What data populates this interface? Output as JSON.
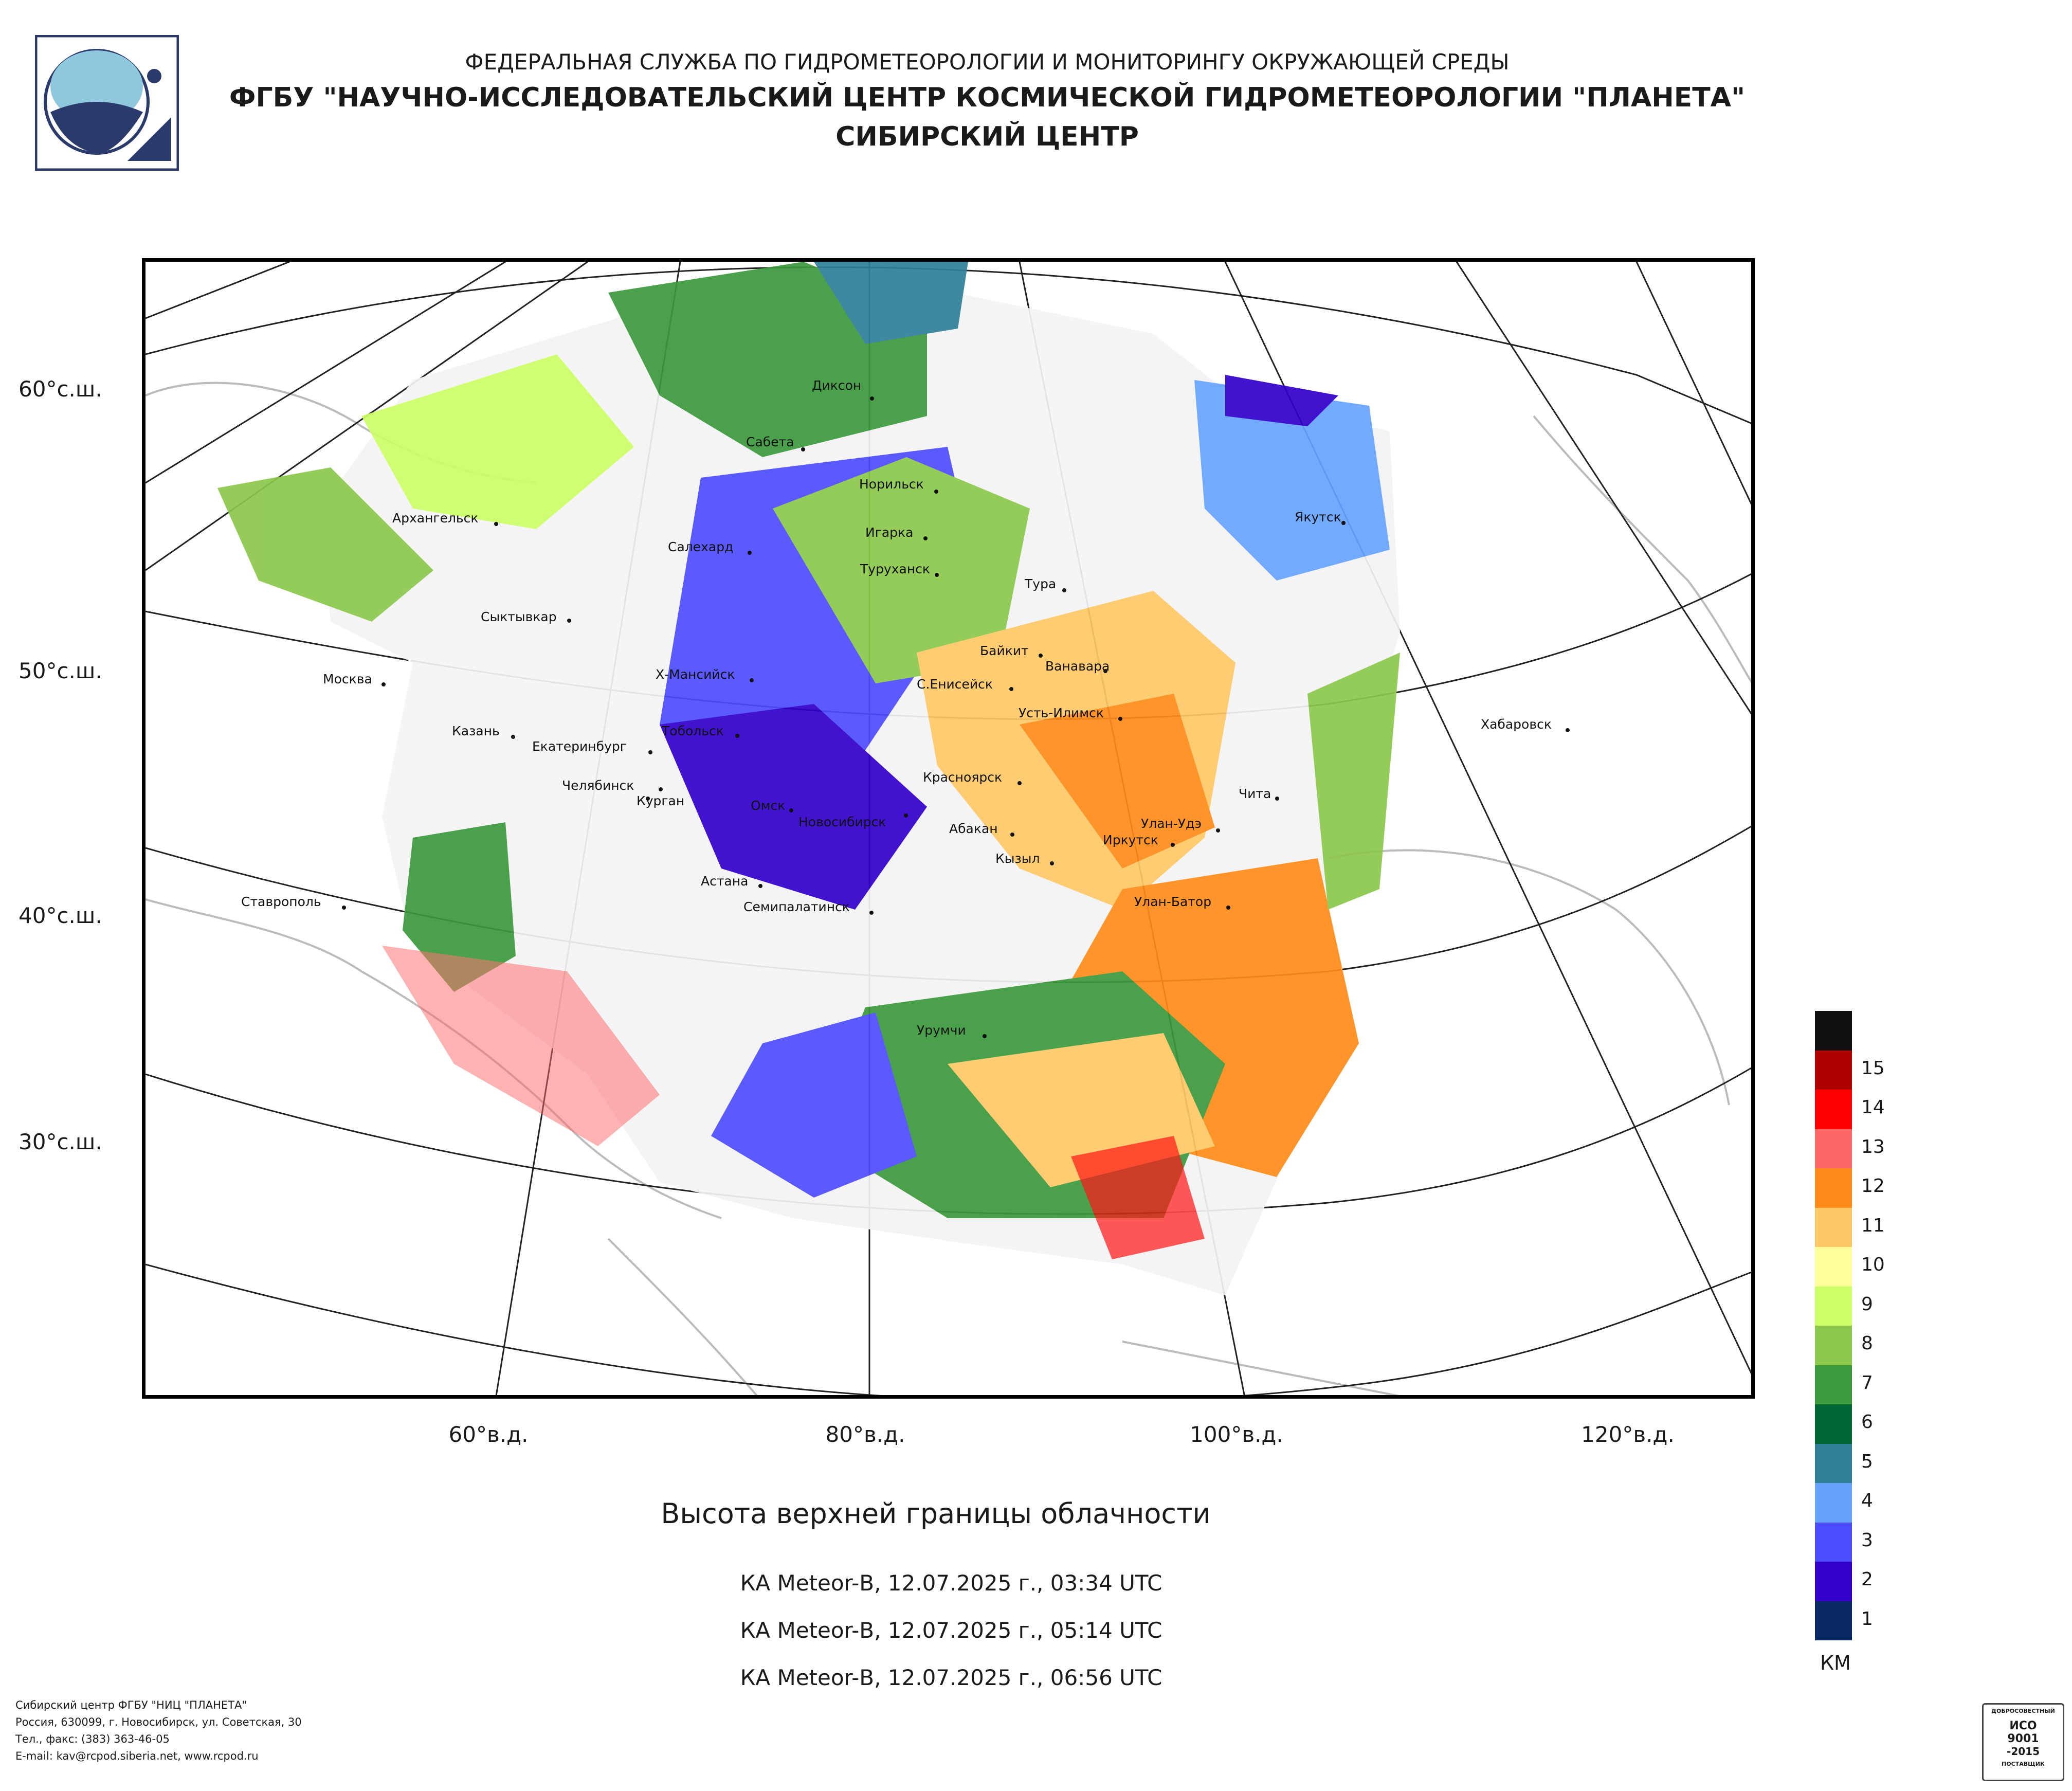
{
  "header": {
    "line1": "ФЕДЕРАЛЬНАЯ СЛУЖБА ПО ГИДРОМЕТЕОРОЛОГИИ И МОНИТОРИНГУ ОКРУЖАЮЩЕЙ СРЕДЫ",
    "line2": "ФГБУ \"НАУЧНО-ИССЛЕДОВАТЕЛЬСКИЙ ЦЕНТР КОСМИЧЕСКОЙ ГИДРОМЕТЕОРОЛОГИИ \"ПЛАНЕТА\"",
    "line3": "СИБИРСКИЙ ЦЕНТР"
  },
  "map": {
    "lat_labels": [
      "60°с.ш.",
      "50°с.ш.",
      "40°с.ш.",
      "30°с.ш."
    ],
    "lon_labels": [
      "60°в.д.",
      "80°в.д.",
      "100°в.д.",
      "120°в.д."
    ],
    "cities": [
      {
        "name": "Диксон"
      },
      {
        "name": "Сабета"
      },
      {
        "name": "Норильск"
      },
      {
        "name": "Архангельск"
      },
      {
        "name": "Игарка"
      },
      {
        "name": "Салехард"
      },
      {
        "name": "Туруханск"
      },
      {
        "name": "Тура"
      },
      {
        "name": "Якутск"
      },
      {
        "name": "Сыктывкар"
      },
      {
        "name": "Байкит"
      },
      {
        "name": "Ванавара"
      },
      {
        "name": "Москва"
      },
      {
        "name": "Х-Мансийск"
      },
      {
        "name": "С.Енисейск"
      },
      {
        "name": "Усть-Илимск"
      },
      {
        "name": "Хабаровск"
      },
      {
        "name": "Казань"
      },
      {
        "name": "Тобольск"
      },
      {
        "name": "Екатеринбург"
      },
      {
        "name": "Красноярск"
      },
      {
        "name": "Челябинск"
      },
      {
        "name": "Курган"
      },
      {
        "name": "Чита"
      },
      {
        "name": "Омск"
      },
      {
        "name": "Новосибирск"
      },
      {
        "name": "Абакан"
      },
      {
        "name": "Улан-Удэ"
      },
      {
        "name": "Иркутск"
      },
      {
        "name": "Кызыл"
      },
      {
        "name": "Астана"
      },
      {
        "name": "Ставрополь"
      },
      {
        "name": "Семипалатинск"
      },
      {
        "name": "Улан-Батор"
      },
      {
        "name": "Урумчи"
      }
    ]
  },
  "title": "Высота верхней границы облачности",
  "passes": [
    "КА Meteor-В, 12.07.2025 г., 03:34 UTC",
    "КА Meteor-В, 12.07.2025 г., 05:14 UTC",
    "КА Meteor-В, 12.07.2025 г., 06:56 UTC"
  ],
  "legend": {
    "unit": "КМ",
    "levels": [
      {
        "label": "",
        "color": "#111111"
      },
      {
        "label": "15",
        "color": "#b00000"
      },
      {
        "label": "14",
        "color": "#ff0000"
      },
      {
        "label": "13",
        "color": "#ff6666"
      },
      {
        "label": "12",
        "color": "#ff8c1a"
      },
      {
        "label": "11",
        "color": "#ffc866"
      },
      {
        "label": "10",
        "color": "#ffff99"
      },
      {
        "label": "9",
        "color": "#ccff66"
      },
      {
        "label": "8",
        "color": "#8cc84b"
      },
      {
        "label": "7",
        "color": "#3c9a3c"
      },
      {
        "label": "6",
        "color": "#006633"
      },
      {
        "label": "5",
        "color": "#2e8098"
      },
      {
        "label": "4",
        "color": "#66a3ff"
      },
      {
        "label": "3",
        "color": "#4d4dff"
      },
      {
        "label": "2",
        "color": "#3300cc"
      },
      {
        "label": "1",
        "color": "#0a2a66"
      }
    ]
  },
  "footer": {
    "lines": [
      "Сибирский центр ФГБУ \"НИЦ \"ПЛАНЕТА\"",
      "Россия, 630099, г. Новосибирск, ул. Советская, 30",
      "Тел., факс: (383) 363-46-05",
      "E-mail: kav@rcpod.siberia.net, www.rcpod.ru"
    ]
  },
  "badge": {
    "top": "ДОБРОСОВЕСТНЫЙ",
    "iso": "ИСО",
    "num": "9001",
    "year": "-2015",
    "bottom": "ПОСТАВЩИК"
  }
}
